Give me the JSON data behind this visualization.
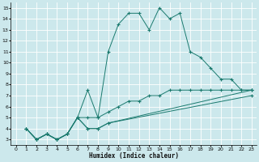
{
  "xlabel": "Humidex (Indice chaleur)",
  "bg_color": "#cce8ec",
  "grid_color": "#ffffff",
  "line_color": "#1a7a6e",
  "xlim": [
    -0.5,
    23.5
  ],
  "ylim": [
    2.5,
    15.5
  ],
  "xticks": [
    0,
    1,
    2,
    3,
    4,
    5,
    6,
    7,
    8,
    9,
    10,
    11,
    12,
    13,
    14,
    15,
    16,
    17,
    18,
    19,
    20,
    21,
    22,
    23
  ],
  "yticks": [
    3,
    4,
    5,
    6,
    7,
    8,
    9,
    10,
    11,
    12,
    13,
    14,
    15
  ],
  "line1_x": [
    1,
    2,
    3,
    4,
    5,
    6,
    7,
    8,
    9,
    10,
    11,
    12,
    13,
    14,
    15,
    16,
    17,
    18,
    19,
    20,
    21,
    22,
    23
  ],
  "line1_y": [
    4,
    3,
    3.5,
    3,
    3.5,
    5,
    7.5,
    5,
    11,
    13.5,
    14.5,
    14.5,
    13,
    15,
    14,
    14.5,
    11,
    10.5,
    9.5,
    8.5,
    8.5,
    7.5,
    7.5
  ],
  "line2_x": [
    1,
    2,
    3,
    4,
    5,
    6,
    7,
    8,
    9,
    10,
    11,
    12,
    13,
    14,
    15,
    16,
    17,
    18,
    19,
    20,
    21,
    22,
    23
  ],
  "line2_y": [
    4,
    3,
    3.5,
    3,
    3.5,
    5,
    5,
    5,
    5.5,
    6,
    6.5,
    6.5,
    7,
    7,
    7.5,
    7.5,
    7.5,
    7.5,
    7.5,
    7.5,
    7.5,
    7.5,
    7.5
  ],
  "line3_x": [
    1,
    2,
    3,
    4,
    5,
    6,
    7,
    8,
    9,
    23
  ],
  "line3_y": [
    4,
    3,
    3.5,
    3,
    3.5,
    5,
    4,
    4,
    4.5,
    7.5
  ],
  "line4_x": [
    1,
    2,
    3,
    4,
    5,
    6,
    7,
    8,
    9,
    23
  ],
  "line4_y": [
    4,
    3,
    3.5,
    3,
    3.5,
    5,
    4,
    4,
    4.5,
    7
  ]
}
